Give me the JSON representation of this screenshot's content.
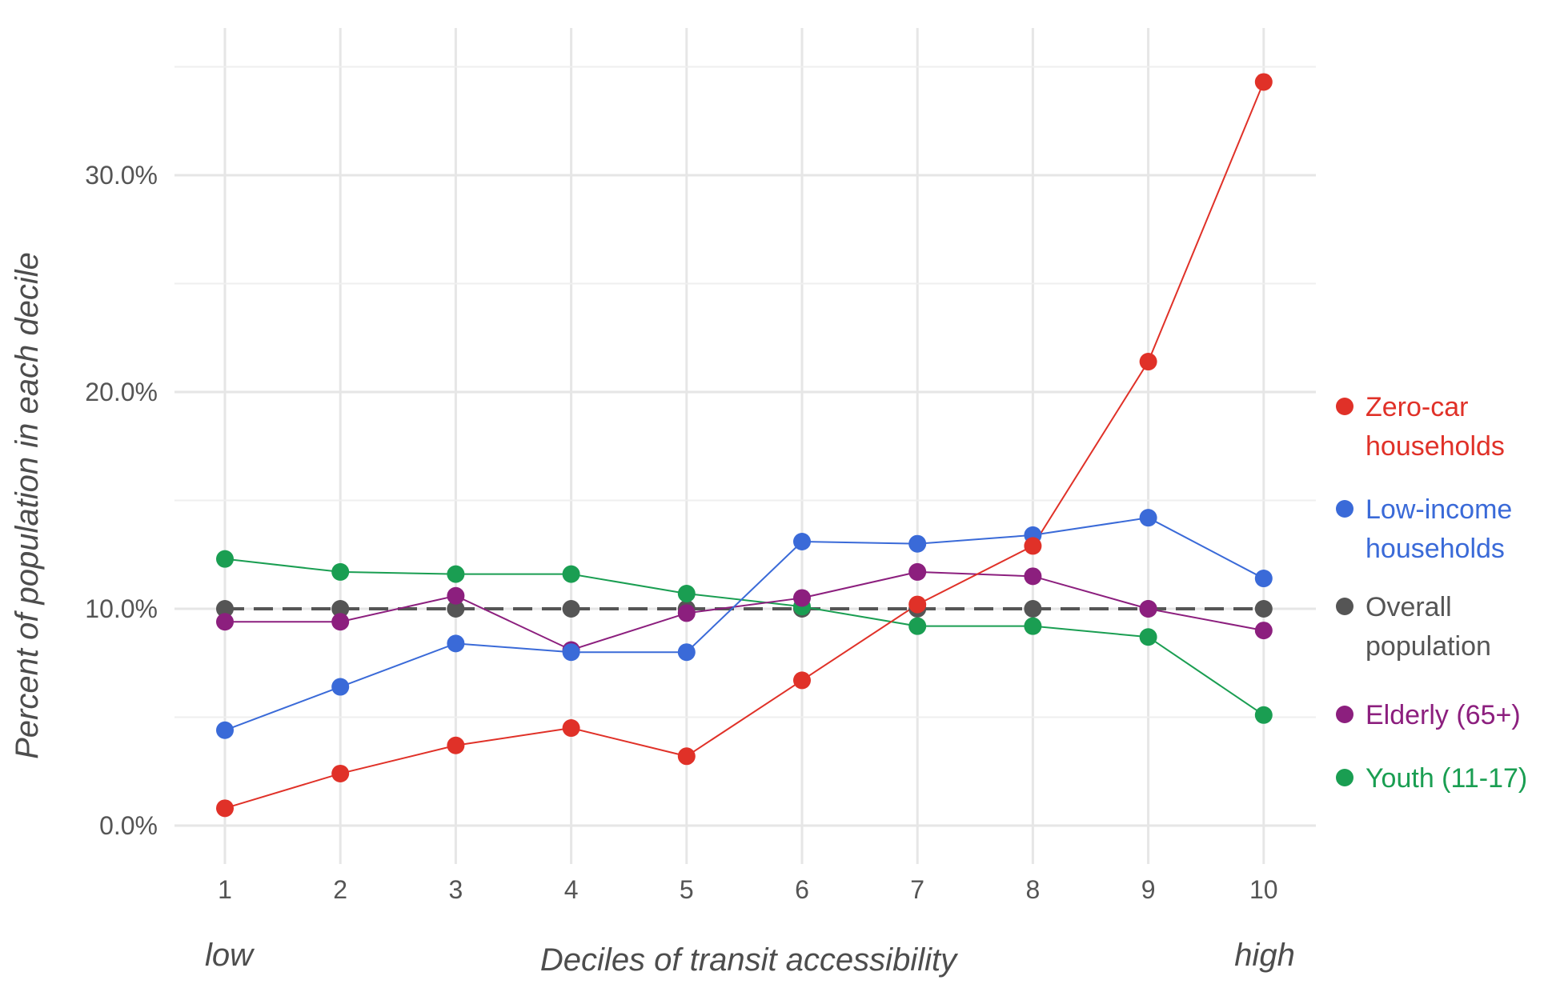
{
  "chart_data": {
    "type": "line",
    "title": "",
    "xlabel": "Deciles of transit accessibility",
    "ylabel": "Percent of population in each decile",
    "x_low_label": "low",
    "x_high_label": "high",
    "categories": [
      1,
      2,
      3,
      4,
      5,
      6,
      7,
      8,
      9,
      10
    ],
    "x_tick_labels": [
      "1",
      "2",
      "3",
      "4",
      "5",
      "6",
      "7",
      "8",
      "9",
      "10"
    ],
    "y_ticks": [
      0,
      10,
      20,
      30
    ],
    "y_tick_labels": [
      "0.0%",
      "10.0%",
      "20.0%",
      "30.0%"
    ],
    "ylim": [
      -1.5,
      35.5
    ],
    "grid": true,
    "legend_position": "right",
    "series": [
      {
        "name": "Zero-car households",
        "legend_lines": [
          "Zero-car",
          "households"
        ],
        "color": "#e03128",
        "style": "solid",
        "values": [
          0.8,
          2.4,
          3.7,
          4.5,
          3.2,
          6.7,
          10.2,
          12.9,
          21.4,
          34.3
        ]
      },
      {
        "name": "Low-income households",
        "legend_lines": [
          "Low-income",
          "households"
        ],
        "color": "#3a6ad8",
        "style": "solid",
        "values": [
          4.4,
          6.4,
          8.4,
          8.0,
          8.0,
          13.1,
          13.0,
          13.4,
          14.2,
          11.4
        ]
      },
      {
        "name": "Overall population",
        "legend_lines": [
          "Overall",
          "population"
        ],
        "color": "#555555",
        "style": "dashed",
        "values": [
          10.0,
          10.0,
          10.0,
          10.0,
          10.0,
          10.0,
          10.0,
          10.0,
          10.0,
          10.0
        ]
      },
      {
        "name": "Elderly (65+)",
        "legend_lines": [
          "Elderly (65+)"
        ],
        "color": "#8c1f7e",
        "style": "solid",
        "values": [
          9.4,
          9.4,
          10.6,
          8.1,
          9.8,
          10.5,
          11.7,
          11.5,
          10.0,
          9.0
        ]
      },
      {
        "name": "Youth (11-17)",
        "legend_lines": [
          "Youth (11-17)"
        ],
        "color": "#1a9e52",
        "style": "solid",
        "values": [
          12.3,
          11.7,
          11.6,
          11.6,
          10.7,
          10.1,
          9.2,
          9.2,
          8.7,
          5.1
        ]
      }
    ]
  }
}
